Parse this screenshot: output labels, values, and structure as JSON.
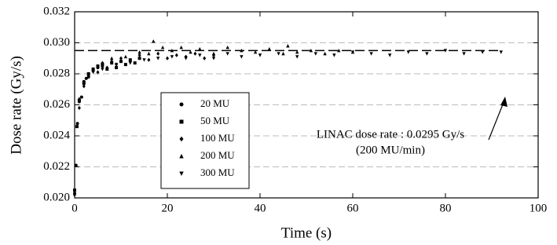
{
  "chart_data": {
    "type": "scatter",
    "x_label": "Time (s)",
    "y_label": "Dose rate (Gy/s)",
    "xlim": [
      0,
      100
    ],
    "xticks": [
      0,
      20,
      40,
      60,
      80,
      100
    ],
    "ylim": [
      0.02,
      0.032
    ],
    "yticks": [
      {
        "value": 0.02,
        "label": "0.020"
      },
      {
        "value": 0.022,
        "label": "0.022"
      },
      {
        "value": 0.024,
        "label": "0.024"
      },
      {
        "value": 0.026,
        "label": "0.026"
      },
      {
        "value": 0.028,
        "label": "0.028"
      },
      {
        "value": 0.03,
        "label": "0.030"
      },
      {
        "value": 0.032,
        "label": "0.032"
      }
    ],
    "grid": true,
    "legend": "center-left",
    "reference_line": {
      "y": 0.0295,
      "x": [
        0,
        92
      ]
    },
    "annotation": [
      "LINAC dose rate : 0.0295 Gy/s",
      "(200 MU/min)"
    ],
    "series": [
      {
        "name": "20 MU",
        "marker": "circle",
        "color": "#000000",
        "x": [
          0,
          0.3,
          0.6,
          1,
          1.5,
          2,
          2.5,
          3,
          4,
          5,
          6
        ],
        "values": [
          0.0203,
          0.0221,
          0.0248,
          0.0262,
          0.0265,
          0.0275,
          0.0277,
          0.0278,
          0.0282,
          0.0284,
          0.0285
        ]
      },
      {
        "name": "50 MU",
        "marker": "square",
        "color": "#000000",
        "x": [
          0,
          0.5,
          1,
          2,
          3,
          4,
          5,
          6,
          7,
          8,
          9,
          10,
          11,
          12,
          13,
          14
        ],
        "values": [
          0.0205,
          0.0246,
          0.0263,
          0.0274,
          0.028,
          0.0283,
          0.0285,
          0.0286,
          0.0283,
          0.0287,
          0.0284,
          0.0288,
          0.0286,
          0.0289,
          0.0287,
          0.029
        ]
      },
      {
        "name": "100 MU",
        "marker": "diamond",
        "color": "#000000",
        "x": [
          0,
          1,
          2,
          3,
          4,
          5,
          6,
          7,
          8,
          9,
          10,
          12,
          14,
          16,
          18,
          20,
          22,
          24,
          26,
          28,
          30
        ],
        "values": [
          0.0202,
          0.0258,
          0.0272,
          0.0279,
          0.0283,
          0.0281,
          0.0287,
          0.0284,
          0.0288,
          0.0286,
          0.029,
          0.0288,
          0.0292,
          0.0289,
          0.0293,
          0.029,
          0.0292,
          0.0291,
          0.0293,
          0.029,
          0.0292
        ]
      },
      {
        "name": "200 MU",
        "marker": "triangle-up",
        "color": "#000000",
        "x": [
          1,
          3,
          5,
          8,
          11,
          14,
          16,
          17,
          19,
          21,
          23,
          25,
          27,
          30,
          33,
          36,
          39,
          42,
          45,
          46,
          48,
          51,
          54,
          57,
          60
        ],
        "values": [
          0.0264,
          0.028,
          0.0285,
          0.029,
          0.0291,
          0.0294,
          0.0293,
          0.0301,
          0.0297,
          0.0295,
          0.0297,
          0.0294,
          0.0296,
          0.0293,
          0.0297,
          0.0295,
          0.0294,
          0.0296,
          0.0293,
          0.0298,
          0.0294,
          0.0295,
          0.0293,
          0.0295,
          0.0294
        ]
      },
      {
        "name": "300 MU",
        "marker": "triangle-down",
        "color": "#000000",
        "x": [
          2,
          4,
          6,
          9,
          12,
          15,
          18,
          21,
          24,
          27,
          30,
          33,
          36,
          40,
          44,
          48,
          52,
          56,
          60,
          64,
          68,
          72,
          76,
          80,
          84,
          88,
          92
        ],
        "values": [
          0.0273,
          0.0281,
          0.0283,
          0.0286,
          0.0287,
          0.0289,
          0.029,
          0.0291,
          0.029,
          0.0292,
          0.029,
          0.0293,
          0.0291,
          0.0292,
          0.0293,
          0.0291,
          0.0293,
          0.0292,
          0.0294,
          0.0293,
          0.0292,
          0.0294,
          0.0293,
          0.0295,
          0.0293,
          0.0294,
          0.0294
        ]
      }
    ]
  }
}
